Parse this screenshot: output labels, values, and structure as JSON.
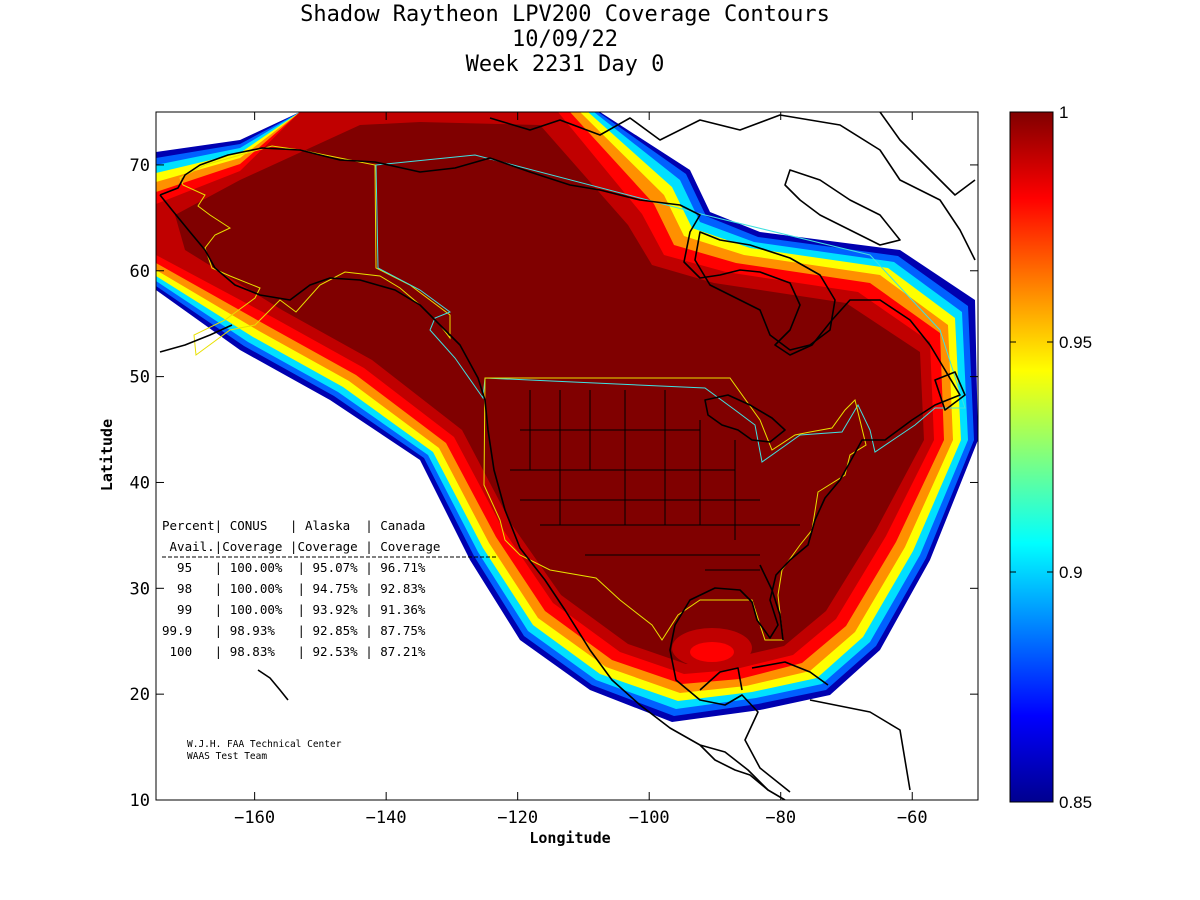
{
  "title": {
    "line1": "Shadow Raytheon LPV200 Coverage Contours",
    "line2": "10/09/22",
    "line3": "Week 2231 Day 0"
  },
  "axes": {
    "xlabel": "Longitude",
    "ylabel": "Latitude",
    "xlim": [
      -175,
      -50
    ],
    "ylim": [
      10,
      75
    ],
    "xticks": [
      -160,
      -140,
      -120,
      -100,
      -80,
      -60
    ],
    "yticks": [
      10,
      20,
      30,
      40,
      50,
      60,
      70
    ],
    "xtick_labels": [
      "−160",
      "−140",
      "−120",
      "−100",
      "−80",
      "−60"
    ],
    "ytick_labels": [
      "10",
      "20",
      "30",
      "40",
      "50",
      "60",
      "70"
    ]
  },
  "colorbar": {
    "min": 0.85,
    "max": 1,
    "ticks": [
      "1",
      "0.95",
      "0.9",
      "0.85"
    ],
    "tick_values": [
      1,
      0.95,
      0.9,
      0.85
    ],
    "colormap": "jet"
  },
  "colors": {
    "full_coverage": "#800000",
    "conus_boundary": "#e8e000",
    "canada_alaska_boundary": "#40e0e0",
    "coastline": "#000000"
  },
  "coverage_table": {
    "header1": "Percent| CONUS   | Alaska  | Canada",
    "header2": " Avail.|Coverage |Coverage | Coverage",
    "rows": [
      {
        "avail": "95",
        "conus": "100.00%",
        "alaska": "95.07%",
        "canada": "96.71%"
      },
      {
        "avail": "98",
        "conus": "100.00%",
        "alaska": "94.75%",
        "canada": "92.83%"
      },
      {
        "avail": "99",
        "conus": "100.00%",
        "alaska": "93.92%",
        "canada": "91.36%"
      },
      {
        "avail": "99.9",
        "conus": "98.93%",
        "alaska": "92.85%",
        "canada": "87.75%"
      },
      {
        "avail": "100",
        "conus": "98.83%",
        "alaska": "92.53%",
        "canada": "87.21%"
      }
    ],
    "row_lines": [
      "  95   | 100.00%  | 95.07% | 96.71%",
      "  98   | 100.00%  | 94.75% | 92.83%",
      "  99   | 100.00%  | 93.92% | 91.36%",
      "99.9   | 98.93%   | 92.85% | 87.75%",
      " 100   | 98.83%   | 92.53% | 87.21%"
    ]
  },
  "credit": {
    "line1": "W.J.H. FAA Technical Center",
    "line2": "WAAS Test Team"
  }
}
